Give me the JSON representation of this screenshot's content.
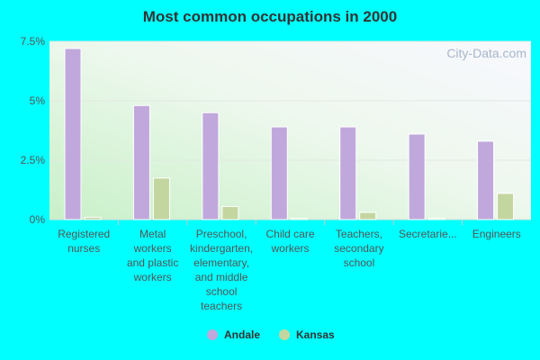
{
  "chart_data": {
    "type": "bar",
    "title": "Most common occupations in 2000",
    "categories": [
      [
        "Registered",
        "nurses"
      ],
      [
        "Metal",
        "workers",
        "and plastic",
        "workers"
      ],
      [
        "Preschool,",
        "kindergarten,",
        "elementary,",
        "and middle",
        "school",
        "teachers"
      ],
      [
        "Child care",
        "workers"
      ],
      [
        "Teachers,",
        "secondary",
        "school"
      ],
      [
        "Secretarie..."
      ],
      [
        "Engineers"
      ]
    ],
    "series": [
      {
        "name": "Andale",
        "color": "#c0a8dc",
        "values": [
          7.2,
          4.8,
          4.5,
          3.9,
          3.9,
          3.6,
          3.3
        ]
      },
      {
        "name": "Kansas",
        "color": "#c4d6a0",
        "values": [
          0.1,
          1.75,
          0.55,
          0.05,
          0.3,
          0.05,
          1.1
        ]
      }
    ],
    "yticks": [
      "0%",
      "2.5%",
      "5%",
      "7.5%"
    ],
    "ytick_values": [
      0,
      2.5,
      5,
      7.5
    ],
    "ylim": [
      0,
      7.5
    ],
    "grid": true,
    "legend": "bottom",
    "watermark": "City-Data.com"
  }
}
